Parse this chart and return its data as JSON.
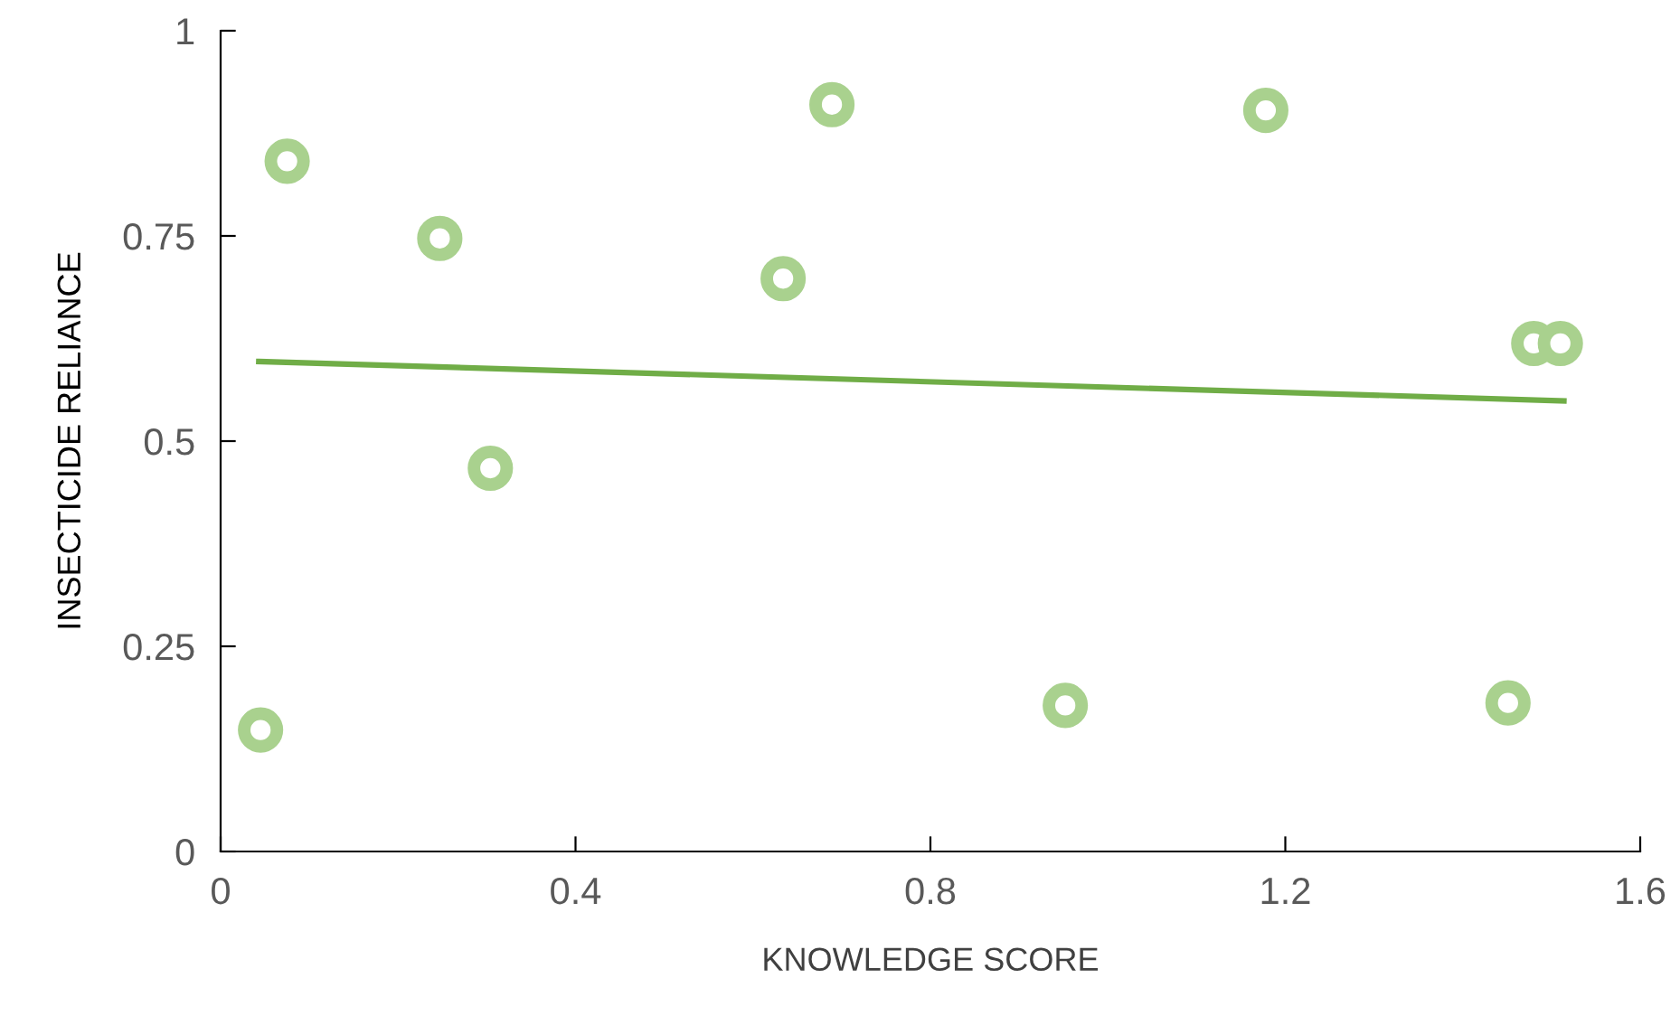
{
  "chart_data": {
    "type": "scatter",
    "xlabel": "KNOWLEDGE SCORE",
    "ylabel": "INSECTICIDE RELIANCE",
    "xlim": [
      0,
      1.6
    ],
    "xticks": [
      0,
      0.4,
      0.8,
      1.2,
      1.6
    ],
    "ylim": [
      0,
      1
    ],
    "yticks": [
      0,
      0.25,
      0.5,
      0.75,
      1
    ],
    "grid": false,
    "legend": false,
    "series": [
      {
        "marker": "circle",
        "color": "#a9d18e",
        "x": [
          0.045,
          0.075,
          0.247,
          0.304,
          0.634,
          0.689,
          0.952,
          1.178,
          1.451,
          1.48,
          1.51
        ],
        "values": [
          0.148,
          0.841,
          0.747,
          0.467,
          0.698,
          0.91,
          0.178,
          0.903,
          0.181,
          0.619,
          0.619
        ]
      },
      {
        "type": "line",
        "marker": "none",
        "color": "#70ad47",
        "x": [
          0.043,
          1.514
        ],
        "values": [
          0.597,
          0.549
        ]
      }
    ]
  }
}
